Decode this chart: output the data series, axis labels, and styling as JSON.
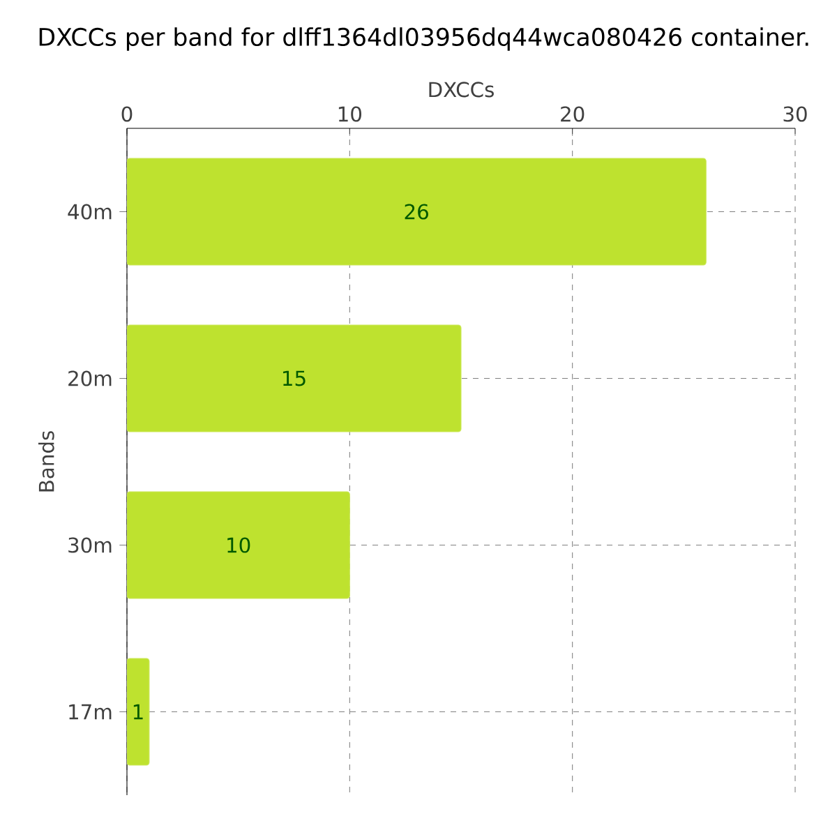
{
  "chart_data": {
    "type": "bar",
    "orientation": "horizontal",
    "title": "DXCCs per band for dlff1364dl03956dq44wca080426 container.",
    "xlabel": "DXCCs",
    "ylabel": "Bands",
    "categories": [
      "40m",
      "20m",
      "30m",
      "17m"
    ],
    "values": [
      26,
      15,
      10,
      1
    ],
    "color": "#bee22f",
    "xlim": [
      0,
      30
    ],
    "xticks": [
      0,
      10,
      20,
      30
    ],
    "grid": true,
    "data_labels": true
  }
}
